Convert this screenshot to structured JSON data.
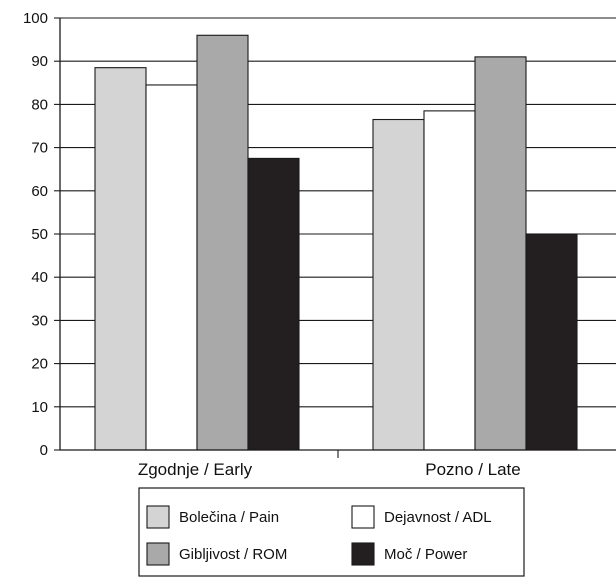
{
  "chart_data": {
    "type": "bar",
    "categories": [
      "Zgodnje / Early",
      "Pozno / Late"
    ],
    "series": [
      {
        "name": "Bolečina / Pain",
        "values": [
          88.5,
          76.5
        ],
        "color": "#d4d4d4"
      },
      {
        "name": "Dejavnost / ADL",
        "values": [
          84.5,
          78.5
        ],
        "color": "#ffffff"
      },
      {
        "name": "Gibljivost / ROM",
        "values": [
          96,
          91
        ],
        "color": "#a9a9a9"
      },
      {
        "name": "Moč / Power",
        "values": [
          67.5,
          50
        ],
        "color": "#231f20"
      }
    ],
    "yticks": [
      0,
      10,
      20,
      30,
      40,
      50,
      60,
      70,
      80,
      90,
      100
    ],
    "ylim": [
      0,
      100
    ],
    "grid": true,
    "legend_position": "bottom-center"
  }
}
